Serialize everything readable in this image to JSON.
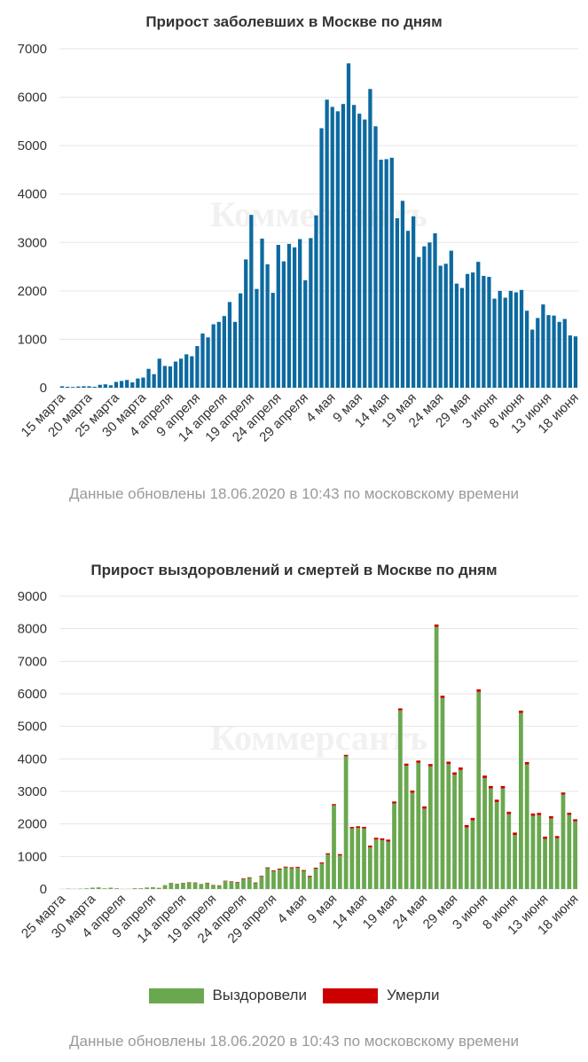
{
  "colors": {
    "cases": "#0d6aa0",
    "recovered": "#6aa84f",
    "deaths": "#cc0000",
    "grid": "#e6e6e6",
    "axis_text": "#333333",
    "note": "#999999"
  },
  "watermark": "Коммерсантъ",
  "chart_data": [
    {
      "type": "bar",
      "title": "Прирост заболевших в Москве по дням",
      "ylim": [
        0,
        7000
      ],
      "yticks": [
        0,
        1000,
        2000,
        3000,
        4000,
        5000,
        6000,
        7000
      ],
      "grid": true,
      "x": [
        "15 марта",
        "16 марта",
        "17 марта",
        "18 марта",
        "19 марта",
        "20 марта",
        "21 марта",
        "22 марта",
        "23 марта",
        "24 марта",
        "25 марта",
        "26 марта",
        "27 марта",
        "28 марта",
        "29 марта",
        "30 марта",
        "31 марта",
        "1 апреля",
        "2 апреля",
        "3 апреля",
        "4 апреля",
        "5 апреля",
        "6 апреля",
        "7 апреля",
        "8 апреля",
        "9 апреля",
        "10 апреля",
        "11 апреля",
        "12 апреля",
        "13 апреля",
        "14 апреля",
        "15 апреля",
        "16 апреля",
        "17 апреля",
        "18 апреля",
        "19 апреля",
        "20 апреля",
        "21 апреля",
        "22 апреля",
        "23 апреля",
        "24 апреля",
        "25 апреля",
        "26 апреля",
        "27 апреля",
        "28 апреля",
        "29 апреля",
        "30 апреля",
        "1 мая",
        "2 мая",
        "3 мая",
        "4 мая",
        "5 мая",
        "6 мая",
        "7 мая",
        "8 мая",
        "9 мая",
        "10 мая",
        "11 мая",
        "12 мая",
        "13 мая",
        "14 мая",
        "15 мая",
        "16 мая",
        "17 мая",
        "18 мая",
        "19 мая",
        "20 мая",
        "21 мая",
        "22 мая",
        "23 мая",
        "24 мая",
        "25 мая",
        "26 мая",
        "27 мая",
        "28 мая",
        "29 мая",
        "30 мая",
        "31 мая",
        "1 июня",
        "2 июня",
        "3 июня",
        "4 июня",
        "5 июня",
        "6 июня",
        "7 июня",
        "8 июня",
        "9 июня",
        "10 июня",
        "11 июня",
        "12 июня",
        "13 июня",
        "14 июня",
        "15 июня",
        "16 июня",
        "17 июня",
        "18 июня"
      ],
      "tick_labels": [
        "15 марта",
        "20 марта",
        "25 марта",
        "30 марта",
        "4 апреля",
        "9 апреля",
        "14 апреля",
        "19 апреля",
        "24 апреля",
        "29 апреля",
        "4 мая",
        "9 мая",
        "14 мая",
        "19 мая",
        "24 мая",
        "29 мая",
        "3 июня",
        "8 июня",
        "13 июня",
        "18 июня"
      ],
      "series": [
        {
          "values": [
            30,
            20,
            15,
            25,
            30,
            30,
            20,
            60,
            70,
            50,
            120,
            140,
            160,
            110,
            190,
            210,
            390,
            280,
            600,
            450,
            440,
            540,
            600,
            690,
            650,
            860,
            1120,
            1040,
            1310,
            1360,
            1480,
            1770,
            1360,
            1950,
            2650,
            3570,
            2040,
            3080,
            2550,
            1960,
            2950,
            2610,
            2970,
            2900,
            3070,
            2220,
            3090,
            3560,
            5360,
            5950,
            5800,
            5710,
            5860,
            6700,
            5840,
            5660,
            5540,
            6170,
            5400,
            4710,
            4720,
            4750,
            3500,
            3860,
            3240,
            3540,
            2700,
            2920,
            3000,
            3190,
            2520,
            2560,
            2830,
            2150,
            2060,
            2350,
            2380,
            2600,
            2310,
            2290,
            1840,
            2000,
            1860,
            2000,
            1970,
            2020,
            1590,
            1200,
            1440,
            1720,
            1500,
            1490,
            1360,
            1420,
            1080,
            1060
          ]
        }
      ]
    },
    {
      "type": "bar",
      "title": "Прирост выздоровлений и смертей в Москве по дням",
      "ylim": [
        0,
        9000
      ],
      "yticks": [
        0,
        1000,
        2000,
        3000,
        4000,
        5000,
        6000,
        7000,
        8000,
        9000
      ],
      "grid": true,
      "stacked": true,
      "legend": "bottom",
      "x": [
        "25 марта",
        "26 марта",
        "27 марта",
        "28 марта",
        "29 марта",
        "30 марта",
        "31 марта",
        "1 апреля",
        "2 апреля",
        "3 апреля",
        "4 апреля",
        "5 апреля",
        "6 апреля",
        "7 апреля",
        "8 апреля",
        "9 апреля",
        "10 апреля",
        "11 апреля",
        "12 апреля",
        "13 апреля",
        "14 апреля",
        "15 апреля",
        "16 апреля",
        "17 апреля",
        "18 апреля",
        "19 апреля",
        "20 апреля",
        "21 апреля",
        "22 апреля",
        "23 апреля",
        "24 апреля",
        "25 апреля",
        "26 апреля",
        "27 апреля",
        "28 апреля",
        "29 апреля",
        "30 апреля",
        "1 мая",
        "2 мая",
        "3 мая",
        "4 мая",
        "5 мая",
        "6 мая",
        "7 мая",
        "8 мая",
        "9 мая",
        "10 мая",
        "11 мая",
        "12 мая",
        "13 мая",
        "14 мая",
        "15 мая",
        "16 мая",
        "17 мая",
        "18 мая",
        "19 мая",
        "20 мая",
        "21 мая",
        "22 мая",
        "23 мая",
        "24 мая",
        "25 мая",
        "26 мая",
        "27 мая",
        "28 мая",
        "29 мая",
        "30 мая",
        "31 мая",
        "1 июня",
        "2 июня",
        "3 июня",
        "4 июня",
        "5 июня",
        "6 июня",
        "7 июня",
        "8 июня",
        "9 июня",
        "10 июня",
        "11 июня",
        "12 июня",
        "13 июня",
        "14 июня",
        "15 июня",
        "16 июня",
        "17 июня",
        "18 июня"
      ],
      "tick_labels": [
        "25 марта",
        "30 марта",
        "4 апреля",
        "9 апреля",
        "14 апреля",
        "19 апреля",
        "24 апреля",
        "29 апреля",
        "4 мая",
        "9 мая",
        "14 мая",
        "19 мая",
        "24 мая",
        "29 мая",
        "3 июня",
        "8 июня",
        "13 июня",
        "18 июня"
      ],
      "series": [
        {
          "name": "Выздоровели",
          "values": [
            0,
            10,
            5,
            10,
            20,
            40,
            50,
            20,
            40,
            20,
            0,
            0,
            20,
            20,
            40,
            50,
            30,
            110,
            180,
            150,
            180,
            200,
            190,
            140,
            180,
            110,
            100,
            240,
            220,
            200,
            310,
            340,
            180,
            380,
            640,
            550,
            600,
            660,
            640,
            650,
            550,
            370,
            620,
            780,
            1060,
            2570,
            1030,
            4080,
            1860,
            1880,
            1860,
            1280,
            1520,
            1500,
            1460,
            2630,
            5490,
            3790,
            2960,
            3880,
            2470,
            3770,
            8060,
            5870,
            3840,
            3510,
            3660,
            1890,
            2110,
            6060,
            3410,
            3090,
            2670,
            3090,
            2300,
            1660,
            5410,
            3830,
            2250,
            2270,
            1540,
            2170,
            1560,
            2900,
            2280,
            2080
          ]
        },
        {
          "name": "Умерли",
          "values": [
            0,
            0,
            0,
            1,
            0,
            1,
            1,
            1,
            1,
            2,
            2,
            2,
            3,
            3,
            4,
            5,
            5,
            6,
            7,
            8,
            9,
            10,
            10,
            11,
            12,
            12,
            14,
            15,
            16,
            17,
            18,
            19,
            20,
            22,
            24,
            26,
            27,
            28,
            29,
            30,
            32,
            33,
            35,
            36,
            38,
            40,
            42,
            44,
            46,
            48,
            50,
            52,
            55,
            57,
            58,
            60,
            62,
            64,
            66,
            68,
            70,
            71,
            72,
            73,
            74,
            75,
            75,
            76,
            76,
            77,
            77,
            76,
            76,
            75,
            75,
            74,
            73,
            72,
            71,
            70,
            69,
            68,
            67,
            66,
            65,
            64
          ]
        }
      ]
    }
  ],
  "footnote": "Данные обновлены 18.06.2020 в 10:43 по московскому времени"
}
